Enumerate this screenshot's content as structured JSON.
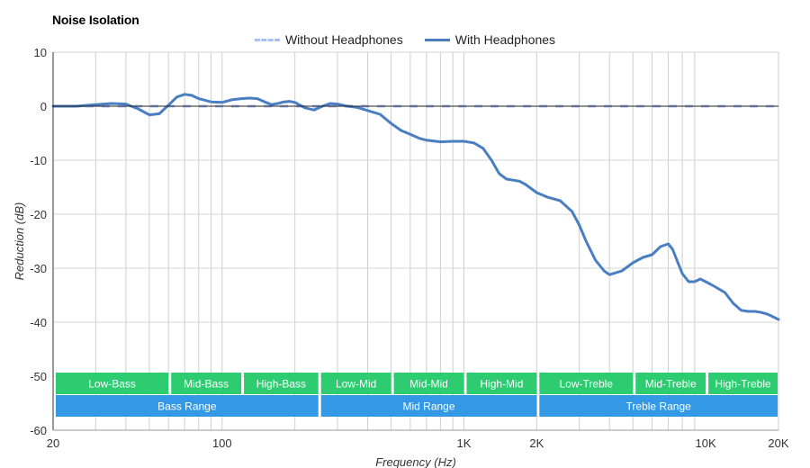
{
  "chart_data": {
    "type": "line",
    "title": "Noise Isolation",
    "xlabel": "Frequency (Hz)",
    "ylabel": "Reduction (dB)",
    "xscale": "log",
    "xlim": [
      20,
      20000
    ],
    "ylim": [
      -60,
      10
    ],
    "grid": true,
    "legend_position": "top-center",
    "x_ticks": [
      {
        "value": 20,
        "label": "20"
      },
      {
        "value": 100,
        "label": "100"
      },
      {
        "value": 1000,
        "label": "1K"
      },
      {
        "value": 2000,
        "label": "2K"
      },
      {
        "value": 10000,
        "label": "10K"
      },
      {
        "value": 20000,
        "label": "20K"
      }
    ],
    "y_ticks": [
      10,
      0,
      -10,
      -20,
      -30,
      -40,
      -50,
      -60
    ],
    "series": [
      {
        "name": "Without Headphones",
        "style": "dashed",
        "color": "#a9bdf7",
        "x": [
          20,
          20000
        ],
        "y": [
          0,
          0
        ]
      },
      {
        "name": "With Headphones",
        "style": "solid",
        "color": "#4a7ec2",
        "x": [
          20,
          25,
          30,
          35,
          40,
          45,
          50,
          55,
          60,
          65,
          70,
          75,
          80,
          90,
          100,
          110,
          120,
          130,
          140,
          150,
          160,
          170,
          180,
          190,
          200,
          220,
          240,
          260,
          280,
          300,
          330,
          360,
          400,
          450,
          500,
          550,
          600,
          650,
          700,
          800,
          900,
          1000,
          1100,
          1200,
          1300,
          1400,
          1500,
          1600,
          1700,
          1800,
          2000,
          2200,
          2500,
          2800,
          3000,
          3200,
          3500,
          3800,
          4000,
          4500,
          5000,
          5500,
          6000,
          6500,
          7000,
          7300,
          7600,
          8000,
          8500,
          9000,
          9500,
          10000,
          10500,
          11000,
          12000,
          13000,
          14000,
          15000,
          16000,
          17000,
          18000,
          19000,
          20000
        ],
        "y": [
          0,
          0,
          0.3,
          0.5,
          0.4,
          -0.5,
          -1.6,
          -1.4,
          0.2,
          1.7,
          2.2,
          2.0,
          1.4,
          0.8,
          0.7,
          1.2,
          1.4,
          1.5,
          1.4,
          0.8,
          0.3,
          0.5,
          0.8,
          0.9,
          0.7,
          -0.3,
          -0.7,
          0.0,
          0.5,
          0.4,
          0.0,
          -0.2,
          -0.8,
          -1.5,
          -3.2,
          -4.5,
          -5.2,
          -5.9,
          -6.3,
          -6.6,
          -6.5,
          -6.5,
          -6.8,
          -7.8,
          -10.0,
          -12.5,
          -13.5,
          -13.7,
          -13.9,
          -14.5,
          -16.0,
          -16.8,
          -17.5,
          -19.5,
          -22.0,
          -25.0,
          -28.5,
          -30.5,
          -31.2,
          -30.5,
          -29.0,
          -28.0,
          -27.5,
          -26.0,
          -25.5,
          -26.5,
          -28.5,
          -31.0,
          -32.5,
          -32.5,
          -32.0,
          -32.5,
          -33.0,
          -33.5,
          -34.5,
          -36.5,
          -37.8,
          -38.0,
          -38.0,
          -38.2,
          -38.5,
          -39.0,
          -39.5
        ]
      }
    ],
    "ranges": [
      {
        "row": 1,
        "label": "Low-Bass",
        "from": 20,
        "to": 60,
        "color": "#2ecc71"
      },
      {
        "row": 1,
        "label": "Mid-Bass",
        "from": 60,
        "to": 120,
        "color": "#2ecc71"
      },
      {
        "row": 1,
        "label": "High-Bass",
        "from": 120,
        "to": 250,
        "color": "#2ecc71"
      },
      {
        "row": 1,
        "label": "Low-Mid",
        "from": 250,
        "to": 500,
        "color": "#2ecc71"
      },
      {
        "row": 1,
        "label": "Mid-Mid",
        "from": 500,
        "to": 1000,
        "color": "#2ecc71"
      },
      {
        "row": 1,
        "label": "High-Mid",
        "from": 1000,
        "to": 2000,
        "color": "#2ecc71"
      },
      {
        "row": 1,
        "label": "Low-Treble",
        "from": 2000,
        "to": 5000,
        "color": "#2ecc71"
      },
      {
        "row": 1,
        "label": "Mid-Treble",
        "from": 5000,
        "to": 10000,
        "color": "#2ecc71"
      },
      {
        "row": 1,
        "label": "High-Treble",
        "from": 10000,
        "to": 20000,
        "color": "#2ecc71"
      },
      {
        "row": 2,
        "label": "Bass Range",
        "from": 20,
        "to": 250,
        "color": "#3399e6"
      },
      {
        "row": 2,
        "label": "Mid Range",
        "from": 250,
        "to": 2000,
        "color": "#3399e6"
      },
      {
        "row": 2,
        "label": "Treble Range",
        "from": 2000,
        "to": 20000,
        "color": "#3399e6"
      }
    ]
  }
}
